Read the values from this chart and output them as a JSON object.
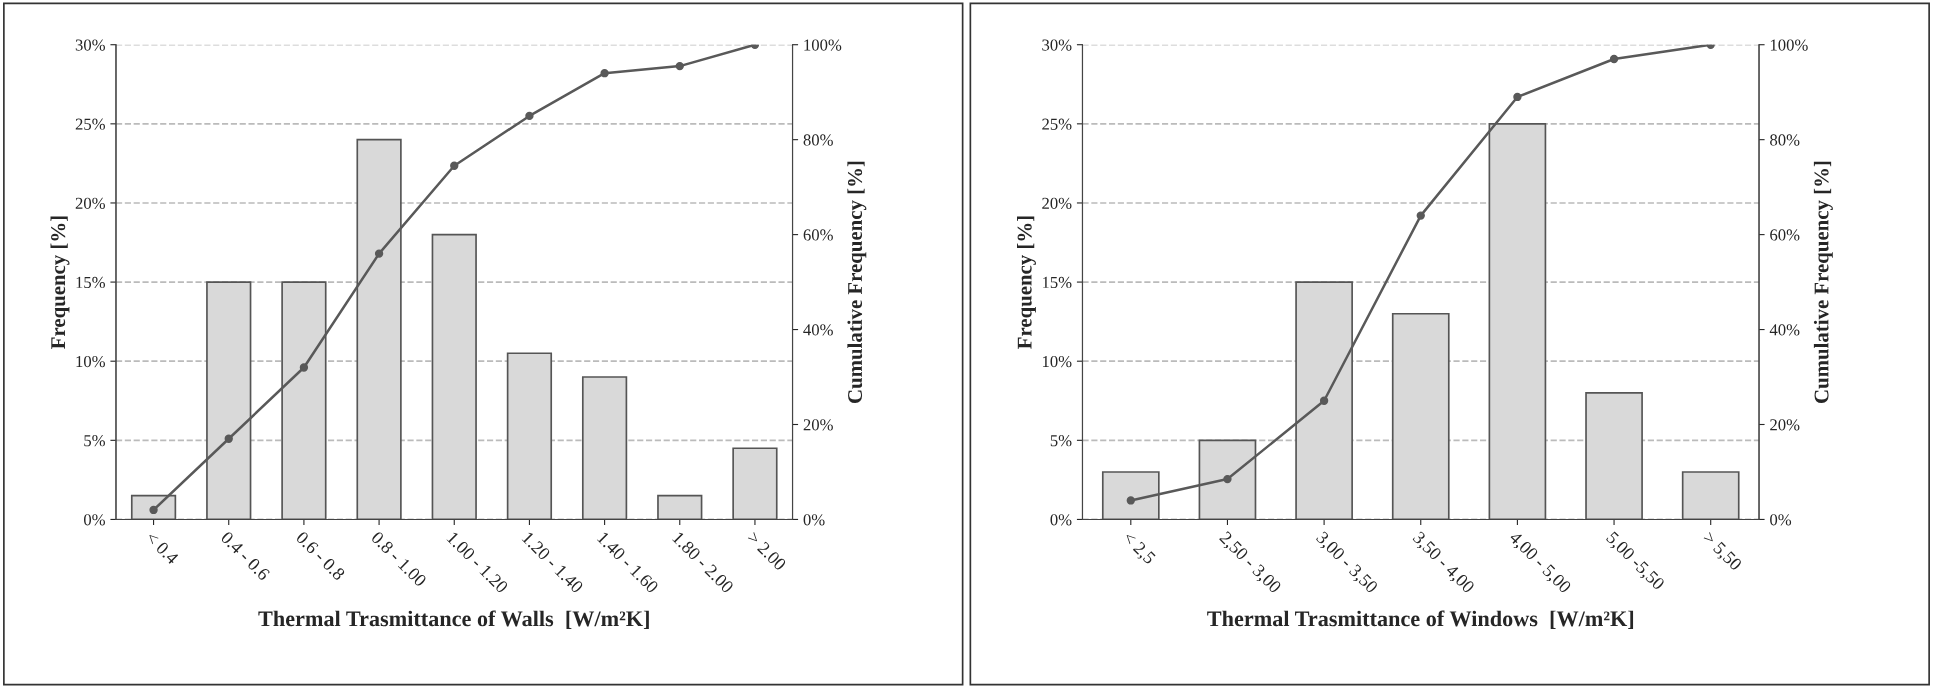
{
  "chart_data": [
    {
      "type": "bar",
      "xlabel": "Thermal Trasmittance of Walls  [W/m²K]",
      "ylabel": "Frequency [%]",
      "y2label": "Cumulative Frequency [%]",
      "categories": [
        "< 0.4",
        "0.4 - 0.6",
        "0.6 - 0.8",
        "0.8 - 1.00",
        "1.00 - 1.20",
        "1.20 - 1.40",
        "1.40 - 1.60",
        "1.80 - 2.00",
        "> 2.00"
      ],
      "series": [
        {
          "color": "#d9d9d9",
          "values": [
            1.5,
            15,
            15,
            24,
            18,
            10.5,
            9,
            1.5,
            4.5
          ]
        },
        {
          "type": "line",
          "axis": "y2",
          "color": "#595959",
          "values": [
            2,
            17,
            32,
            56,
            74.5,
            85,
            94,
            95.5,
            100
          ]
        }
      ],
      "ylim": [
        0,
        30
      ],
      "yticks": [
        {
          "value": 0,
          "label": "0%"
        },
        {
          "value": 5,
          "label": "5%"
        },
        {
          "value": 10,
          "label": "10%"
        },
        {
          "value": 15,
          "label": "15%"
        },
        {
          "value": 20,
          "label": "20%"
        },
        {
          "value": 25,
          "label": "25%"
        },
        {
          "value": 30,
          "label": "30%"
        }
      ],
      "y2lim": [
        0,
        100
      ],
      "y2ticks": [
        {
          "value": 0,
          "label": "0%"
        },
        {
          "value": 20,
          "label": "20%"
        },
        {
          "value": 40,
          "label": "40%"
        },
        {
          "value": 60,
          "label": "60%"
        },
        {
          "value": 80,
          "label": "80%"
        },
        {
          "value": 100,
          "label": "100%"
        }
      ],
      "grid": "y",
      "marker": "circle",
      "line_style": "solid"
    },
    {
      "type": "bar",
      "xlabel": "Thermal Trasmittance of Windows  [W/m²K]",
      "ylabel": "Frequency [%]",
      "y2label": "Cumulative Frequency [%]",
      "categories": [
        "< 2,5",
        "2,50 - 3,00",
        "3,00 - 3,50",
        "3,50 - 4,00",
        "4,00 - 5,00",
        "5,00 -5,50",
        "> 5,50"
      ],
      "series": [
        {
          "color": "#d9d9d9",
          "values": [
            3,
            5,
            15,
            13,
            25,
            8,
            3
          ]
        },
        {
          "type": "line",
          "axis": "y2",
          "color": "#595959",
          "values": [
            4,
            8.5,
            25,
            64,
            89,
            97,
            100
          ]
        }
      ],
      "ylim": [
        0,
        30
      ],
      "yticks": [
        {
          "value": 0,
          "label": "0%"
        },
        {
          "value": 5,
          "label": "5%"
        },
        {
          "value": 10,
          "label": "10%"
        },
        {
          "value": 15,
          "label": "15%"
        },
        {
          "value": 20,
          "label": "20%"
        },
        {
          "value": 25,
          "label": "25%"
        },
        {
          "value": 30,
          "label": "30%"
        }
      ],
      "y2lim": [
        0,
        100
      ],
      "y2ticks": [
        {
          "value": 0,
          "label": "0%"
        },
        {
          "value": 20,
          "label": "20%"
        },
        {
          "value": 40,
          "label": "40%"
        },
        {
          "value": 60,
          "label": "60%"
        },
        {
          "value": 80,
          "label": "80%"
        },
        {
          "value": 100,
          "label": "100%"
        }
      ],
      "grid": "y",
      "marker": "circle",
      "line_style": "solid"
    }
  ]
}
